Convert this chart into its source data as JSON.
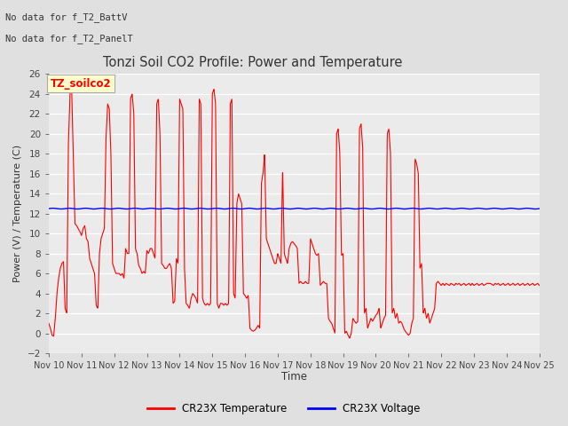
{
  "title": "Tonzi Soil CO2 Profile: Power and Temperature",
  "ylabel": "Power (V) / Temperature (C)",
  "xlabel": "Time",
  "top_left_text1": "No data for f_T2_BattV",
  "top_left_text2": "No data for f_T2_PanelT",
  "legend_label_box": "TZ_soilco2",
  "legend_entries": [
    "CR23X Temperature",
    "CR23X Voltage"
  ],
  "ylim": [
    -2,
    26
  ],
  "yticks": [
    -2,
    0,
    2,
    4,
    6,
    8,
    10,
    12,
    14,
    16,
    18,
    20,
    22,
    24,
    26
  ],
  "xtick_positions": [
    10,
    11,
    12,
    13,
    14,
    15,
    16,
    17,
    18,
    19,
    20,
    21,
    22,
    23,
    24,
    25
  ],
  "xtick_labels": [
    "Nov 10",
    "Nov 11",
    "Nov 12",
    "Nov 13",
    "Nov 14",
    "Nov 15",
    "Nov 16",
    "Nov 17",
    "Nov 18",
    "Nov 19",
    "Nov 20",
    "Nov 21",
    "Nov 22",
    "Nov 23",
    "Nov 24",
    "Nov 25"
  ],
  "bg_color": "#e0e0e0",
  "plot_bg_color": "#ebebeb",
  "voltage_value": 12.5,
  "temp_color": "red",
  "voltage_color": "blue",
  "temp_x": [
    10.0,
    10.05,
    10.1,
    10.15,
    10.2,
    10.25,
    10.3,
    10.35,
    10.4,
    10.45,
    10.5,
    10.55,
    10.6,
    10.65,
    10.7,
    10.75,
    10.8,
    10.85,
    10.9,
    10.95,
    11.0,
    11.05,
    11.1,
    11.15,
    11.2,
    11.25,
    11.3,
    11.35,
    11.4,
    11.45,
    11.5,
    11.55,
    11.6,
    11.65,
    11.7,
    11.75,
    11.8,
    11.85,
    11.9,
    11.95,
    12.0,
    12.05,
    12.1,
    12.15,
    12.2,
    12.25,
    12.3,
    12.35,
    12.4,
    12.45,
    12.5,
    12.55,
    12.6,
    12.65,
    12.7,
    12.75,
    12.8,
    12.85,
    12.9,
    12.95,
    13.0,
    13.05,
    13.1,
    13.15,
    13.2,
    13.25,
    13.3,
    13.35,
    13.4,
    13.45,
    13.5,
    13.55,
    13.6,
    13.65,
    13.7,
    13.75,
    13.8,
    13.85,
    13.9,
    13.95,
    14.0,
    14.05,
    14.1,
    14.15,
    14.2,
    14.25,
    14.3,
    14.35,
    14.4,
    14.45,
    14.5,
    14.55,
    14.6,
    14.65,
    14.7,
    14.75,
    14.8,
    14.85,
    14.9,
    14.95,
    15.0,
    15.05,
    15.1,
    15.15,
    15.2,
    15.25,
    15.3,
    15.35,
    15.4,
    15.45,
    15.5,
    15.55,
    15.6,
    15.65,
    15.7,
    15.75,
    15.8,
    15.85,
    15.9,
    15.95,
    16.0,
    16.05,
    16.1,
    16.15,
    16.2,
    16.25,
    16.3,
    16.35,
    16.4,
    16.45,
    16.5,
    16.55,
    16.6,
    16.65,
    16.7,
    16.75,
    16.8,
    16.85,
    16.9,
    16.95,
    17.0,
    17.05,
    17.1,
    17.15,
    17.2,
    17.25,
    17.3,
    17.35,
    17.4,
    17.45,
    17.5,
    17.55,
    17.6,
    17.65,
    17.7,
    17.75,
    17.8,
    17.85,
    17.9,
    17.95,
    18.0,
    18.05,
    18.1,
    18.15,
    18.2,
    18.25,
    18.3,
    18.35,
    18.4,
    18.45,
    18.5,
    18.55,
    18.6,
    18.65,
    18.7,
    18.75,
    18.8,
    18.85,
    18.9,
    18.95,
    19.0,
    19.05,
    19.1,
    19.15,
    19.2,
    19.25,
    19.3,
    19.35,
    19.4,
    19.45,
    19.5,
    19.55,
    19.6,
    19.65,
    19.7,
    19.75,
    19.8,
    19.85,
    19.9,
    19.95,
    20.0,
    20.05,
    20.1,
    20.15,
    20.2,
    20.25,
    20.3,
    20.35,
    20.4,
    20.45,
    20.5,
    20.55,
    20.6,
    20.65,
    20.7,
    20.75,
    20.8,
    20.85,
    20.9,
    20.95,
    21.0,
    21.05,
    21.1,
    21.15,
    21.2,
    21.25,
    21.3,
    21.35,
    21.4,
    21.45,
    21.5,
    21.55,
    21.6,
    21.65,
    21.7,
    21.75,
    21.8,
    21.85,
    21.9,
    21.95,
    22.0,
    22.05,
    22.1,
    22.15,
    22.2,
    22.25,
    22.3,
    22.35,
    22.4,
    22.45,
    22.5,
    22.55,
    22.6,
    22.65,
    22.7,
    22.75,
    22.8,
    22.85,
    22.9,
    22.95,
    23.0,
    23.05,
    23.1,
    23.15,
    23.2,
    23.25,
    23.3,
    23.35,
    23.4,
    23.45,
    23.5,
    23.55,
    23.6,
    23.65,
    23.7,
    23.75,
    23.8,
    23.85,
    23.9,
    23.95,
    24.0,
    24.05,
    24.1,
    24.15,
    24.2,
    24.25,
    24.3,
    24.35,
    24.4,
    24.45,
    24.5,
    24.55,
    24.6,
    24.65,
    24.7,
    24.75,
    24.8,
    24.85,
    24.9,
    24.95,
    25.0
  ],
  "temp_y": [
    1.0,
    0.5,
    -0.2,
    -0.3,
    1.5,
    4.0,
    5.5,
    6.5,
    7.0,
    7.2,
    2.5,
    2.0,
    19.0,
    24.0,
    24.5,
    18.0,
    11.0,
    10.8,
    10.5,
    10.2,
    9.8,
    10.5,
    10.8,
    9.5,
    9.2,
    7.5,
    7.0,
    6.5,
    6.0,
    2.8,
    2.5,
    8.0,
    9.5,
    10.0,
    10.5,
    19.5,
    23.0,
    22.5,
    18.0,
    7.0,
    6.5,
    6.0,
    6.0,
    6.0,
    5.8,
    6.0,
    5.5,
    8.5,
    8.0,
    8.0,
    23.5,
    24.0,
    22.0,
    8.5,
    8.0,
    6.8,
    6.5,
    6.0,
    6.2,
    6.0,
    8.3,
    8.0,
    8.5,
    8.5,
    8.0,
    7.5,
    23.0,
    23.5,
    20.0,
    7.0,
    6.8,
    6.5,
    6.5,
    6.8,
    7.0,
    6.5,
    3.0,
    3.2,
    7.5,
    7.0,
    23.5,
    23.0,
    22.5,
    6.5,
    3.0,
    2.8,
    2.5,
    3.5,
    4.0,
    3.8,
    3.5,
    3.0,
    23.5,
    23.0,
    3.5,
    3.0,
    2.8,
    3.0,
    2.8,
    3.0,
    24.0,
    24.5,
    23.0,
    3.0,
    2.5,
    3.0,
    3.0,
    2.8,
    3.0,
    2.8,
    3.0,
    23.0,
    23.5,
    4.0,
    3.5,
    13.0,
    14.0,
    13.5,
    13.0,
    4.0,
    3.8,
    3.5,
    3.8,
    0.5,
    0.3,
    0.2,
    0.3,
    0.5,
    0.8,
    0.5,
    15.0,
    16.0,
    18.0,
    9.5,
    9.0,
    8.5,
    8.0,
    7.5,
    7.0,
    7.0,
    8.0,
    7.5,
    7.0,
    16.5,
    8.0,
    7.5,
    7.0,
    8.5,
    9.0,
    9.2,
    9.0,
    8.8,
    8.5,
    5.0,
    5.2,
    5.0,
    5.0,
    5.2,
    5.0,
    5.0,
    9.5,
    9.0,
    8.5,
    8.0,
    7.8,
    8.0,
    4.8,
    5.0,
    5.2,
    5.0,
    5.0,
    1.5,
    1.2,
    1.0,
    0.5,
    0.0,
    20.0,
    20.5,
    18.0,
    7.8,
    8.0,
    0.0,
    0.2,
    -0.2,
    -0.5,
    0.0,
    1.5,
    1.2,
    1.0,
    1.2,
    20.5,
    21.0,
    18.5,
    2.0,
    2.5,
    0.5,
    1.0,
    1.5,
    1.2,
    1.5,
    1.8,
    2.0,
    2.5,
    0.5,
    1.0,
    1.5,
    1.8,
    20.0,
    20.5,
    18.0,
    2.0,
    2.5,
    1.5,
    2.0,
    1.0,
    1.2,
    1.0,
    0.5,
    0.2,
    0.0,
    -0.2,
    0.0,
    1.0,
    1.5,
    17.5,
    17.0,
    16.0,
    6.5,
    7.0,
    2.0,
    2.5,
    1.5,
    2.0,
    1.0,
    1.5,
    2.0,
    2.5,
    5.0,
    5.2,
    5.0,
    4.8,
    5.0,
    4.8,
    5.0,
    4.9,
    4.8,
    5.0,
    4.9,
    4.8,
    5.0,
    4.9,
    5.0,
    4.8,
    4.9,
    5.0,
    4.8,
    4.9,
    5.0,
    4.8,
    5.0,
    4.8,
    4.9,
    5.0,
    4.8,
    4.9,
    5.0,
    4.8,
    4.9,
    5.0,
    5.0,
    5.0,
    4.9,
    4.8,
    5.0,
    4.9,
    5.0,
    4.8,
    4.9,
    5.0,
    4.8,
    4.9,
    5.0,
    4.8,
    4.9,
    5.0,
    4.8,
    4.9,
    5.0,
    4.8,
    4.9,
    5.0,
    4.8,
    4.9,
    5.0,
    4.8,
    4.9,
    5.0,
    4.8,
    4.9,
    5.0,
    4.8
  ]
}
